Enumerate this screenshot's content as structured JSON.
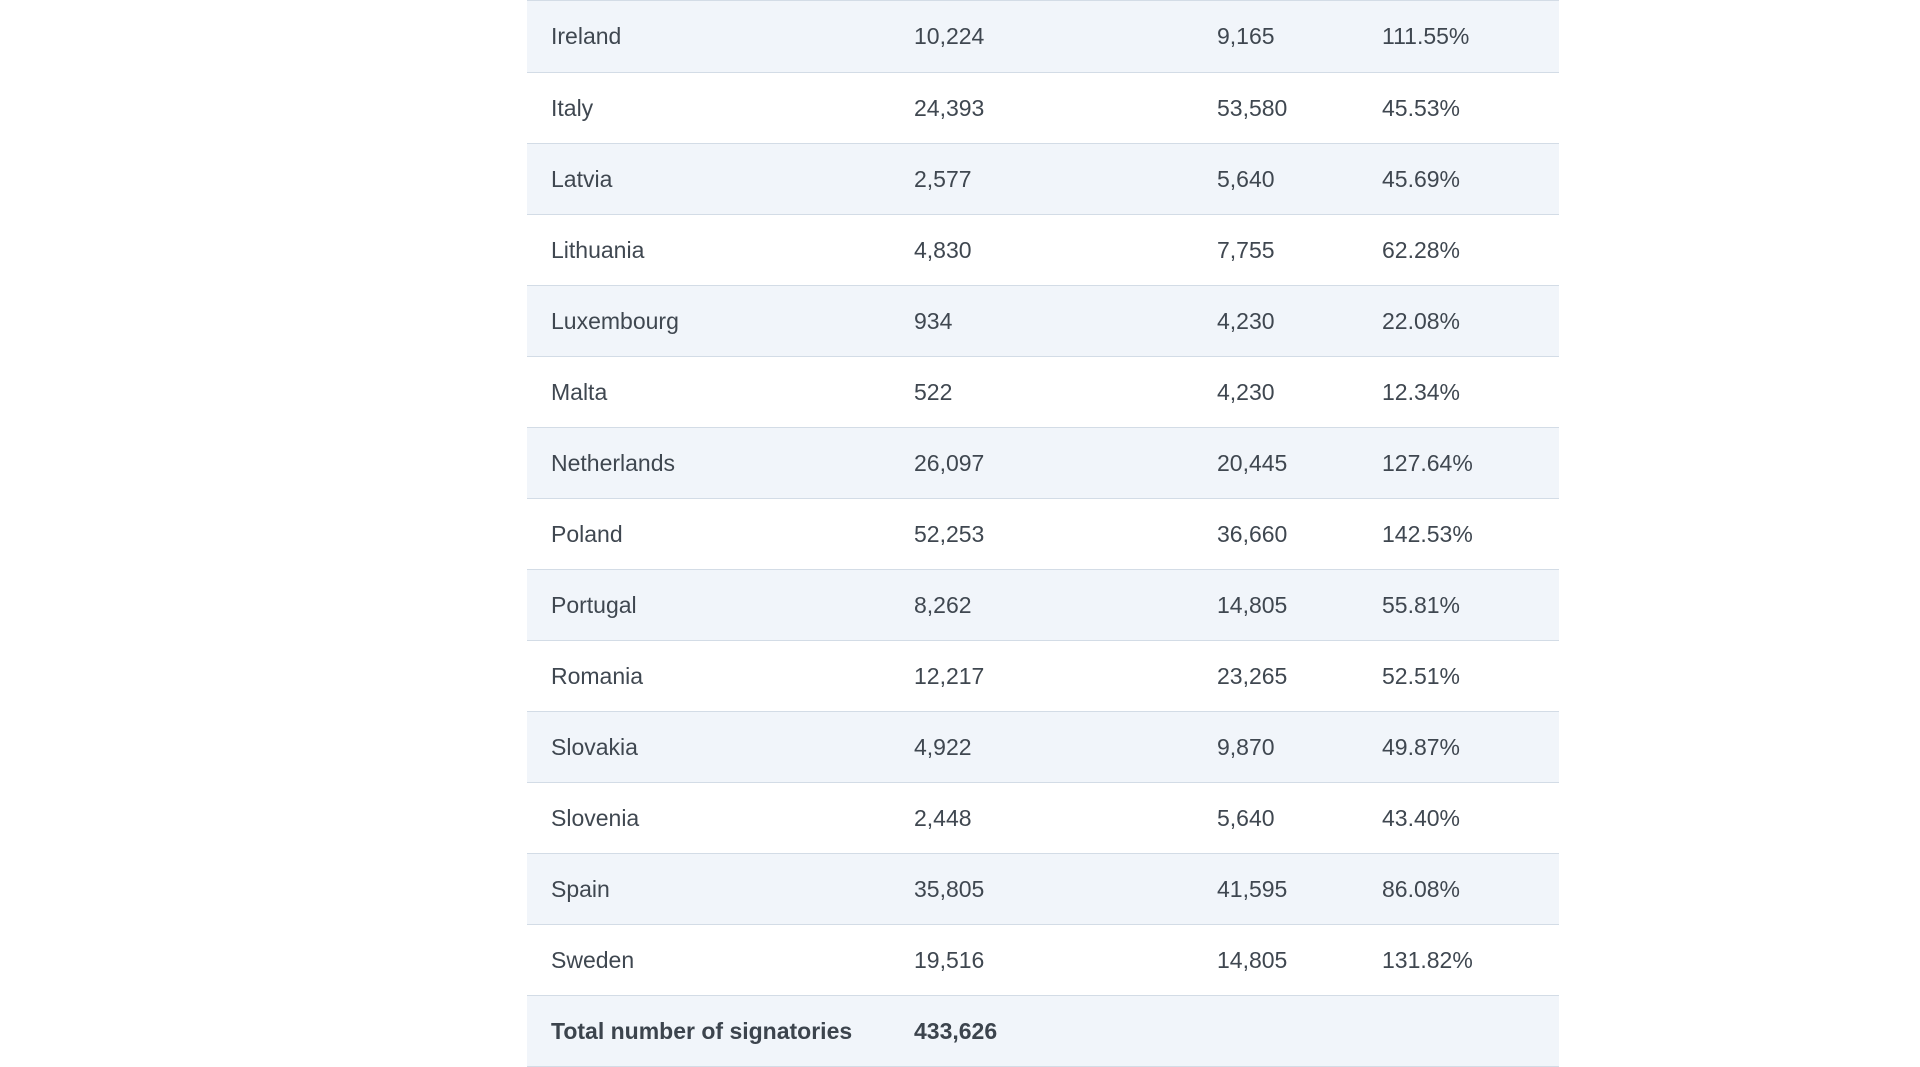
{
  "table": {
    "rows": [
      {
        "country": "Ireland",
        "signatories": "10,224",
        "threshold": "9,165",
        "percentage": "111.55%"
      },
      {
        "country": "Italy",
        "signatories": "24,393",
        "threshold": "53,580",
        "percentage": "45.53%"
      },
      {
        "country": "Latvia",
        "signatories": "2,577",
        "threshold": "5,640",
        "percentage": "45.69%"
      },
      {
        "country": "Lithuania",
        "signatories": "4,830",
        "threshold": "7,755",
        "percentage": "62.28%"
      },
      {
        "country": "Luxembourg",
        "signatories": "934",
        "threshold": "4,230",
        "percentage": "22.08%"
      },
      {
        "country": "Malta",
        "signatories": "522",
        "threshold": "4,230",
        "percentage": "12.34%"
      },
      {
        "country": "Netherlands",
        "signatories": "26,097",
        "threshold": "20,445",
        "percentage": "127.64%"
      },
      {
        "country": "Poland",
        "signatories": "52,253",
        "threshold": "36,660",
        "percentage": "142.53%"
      },
      {
        "country": "Portugal",
        "signatories": "8,262",
        "threshold": "14,805",
        "percentage": "55.81%"
      },
      {
        "country": "Romania",
        "signatories": "12,217",
        "threshold": "23,265",
        "percentage": "52.51%"
      },
      {
        "country": "Slovakia",
        "signatories": "4,922",
        "threshold": "9,870",
        "percentage": "49.87%"
      },
      {
        "country": "Slovenia",
        "signatories": "2,448",
        "threshold": "5,640",
        "percentage": "43.40%"
      },
      {
        "country": "Spain",
        "signatories": "35,805",
        "threshold": "41,595",
        "percentage": "86.08%"
      },
      {
        "country": "Sweden",
        "signatories": "19,516",
        "threshold": "14,805",
        "percentage": "131.82%"
      }
    ],
    "total": {
      "label": "Total number of signatories",
      "value": "433,626"
    }
  },
  "colors": {
    "row_shaded": "#f1f5fa",
    "row_plain": "#ffffff",
    "border": "#d3dce6",
    "text": "#3f4750"
  }
}
